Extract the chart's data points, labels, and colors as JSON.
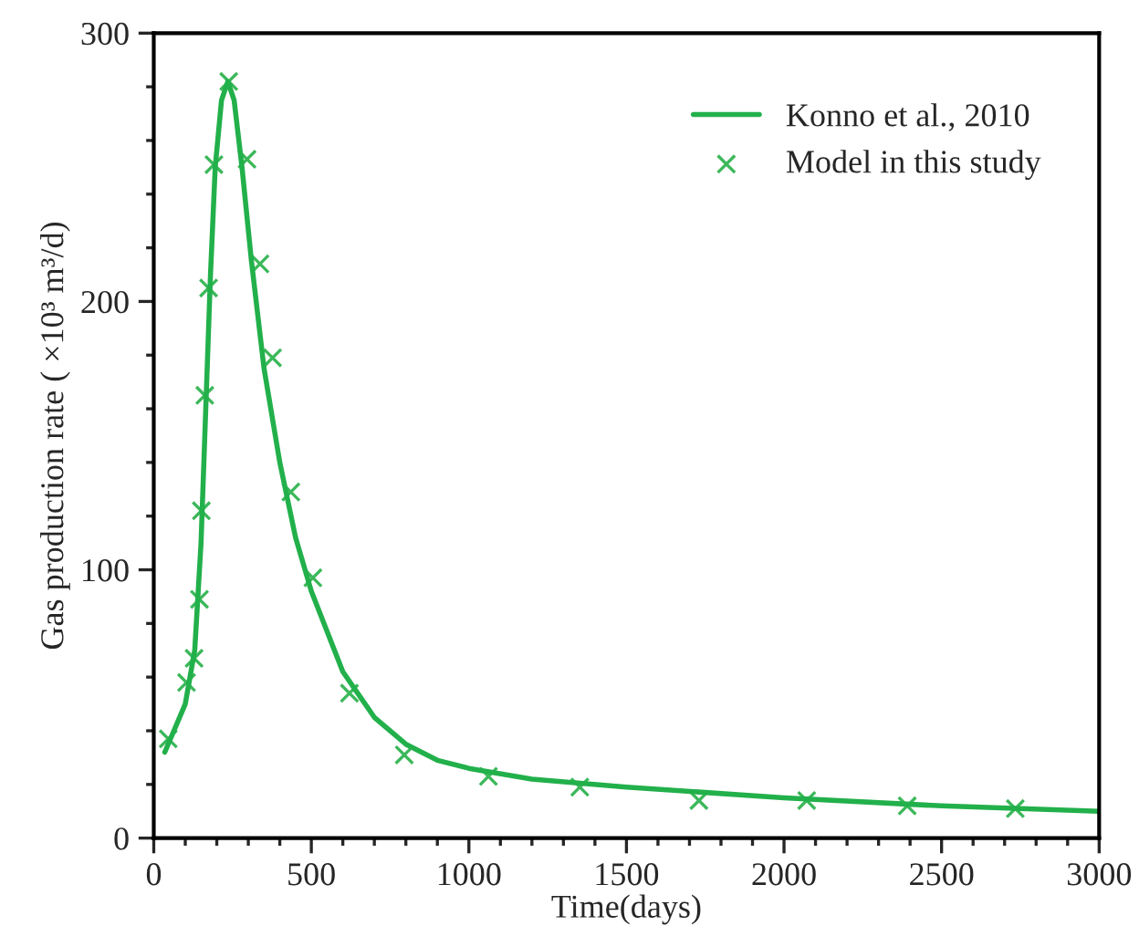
{
  "chart_data": {
    "type": "line",
    "xlabel": "Time(days)",
    "ylabel": "Gas production rate ( ×10³ m³/d)",
    "xlim": [
      0,
      3000
    ],
    "xticks": [
      0,
      500,
      1000,
      1500,
      2000,
      2500,
      3000
    ],
    "ylim": [
      0,
      300
    ],
    "yticks": [
      0,
      100,
      200,
      300
    ],
    "grid": false,
    "legend": "top right",
    "series": [
      {
        "name": "Konno et al., 2010",
        "color": "#22b04b",
        "marker": "none",
        "line_style": "solid",
        "x": [
          35,
          100,
          130,
          150,
          165,
          180,
          195,
          215,
          235,
          255,
          280,
          310,
          350,
          400,
          450,
          500,
          600,
          700,
          800,
          900,
          1000,
          1200,
          1500,
          2000,
          2500,
          3000
        ],
        "values": [
          32,
          50,
          70,
          110,
          160,
          210,
          250,
          275,
          282,
          275,
          250,
          215,
          175,
          140,
          112,
          92,
          62,
          45,
          35,
          29,
          26,
          22,
          19,
          15,
          12,
          10
        ]
      },
      {
        "name": "Model in this study",
        "type": "scatter",
        "color": "#3cb85a",
        "marker": "cross",
        "x": [
          46,
          104,
          128,
          145,
          151,
          162,
          174,
          191,
          238,
          296,
          337,
          377,
          435,
          505,
          621,
          795,
          1062,
          1352,
          1730,
          2072,
          2391,
          2734
        ],
        "values": [
          37,
          58,
          67,
          89,
          122,
          165,
          205,
          251,
          282,
          253,
          214,
          179,
          129,
          97,
          54,
          31,
          23,
          19,
          14,
          14,
          12,
          11
        ]
      }
    ]
  }
}
